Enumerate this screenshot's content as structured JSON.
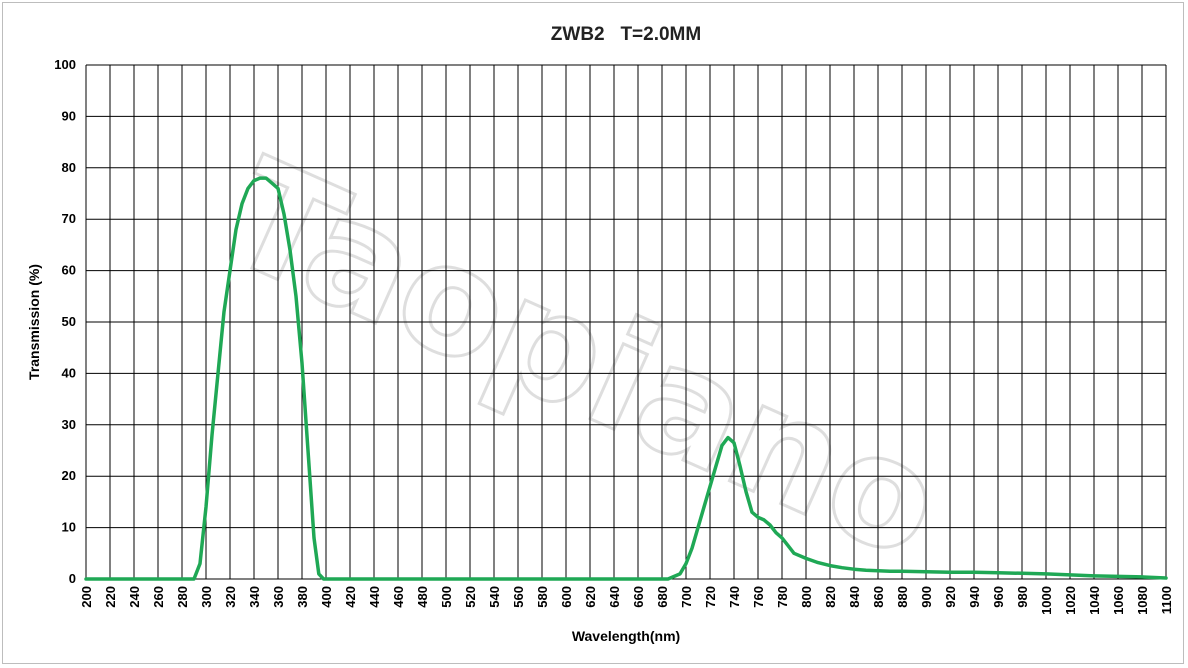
{
  "watermark": "Taopiano",
  "chart_data": {
    "type": "line",
    "title": "ZWB2   T=2.0MM",
    "xlabel": "Wavelength(nm)",
    "ylabel": "Transmission (%)",
    "xlim": [
      200,
      1100
    ],
    "ylim": [
      0,
      100
    ],
    "xticks": [
      "200",
      "220",
      "240",
      "260",
      "280",
      "300",
      "320",
      "340",
      "360",
      "380",
      "400",
      "420",
      "440",
      "460",
      "480",
      "500",
      "520",
      "540",
      "560",
      "580",
      "600",
      "620",
      "640",
      "660",
      "680",
      "700",
      "720",
      "740",
      "760",
      "780",
      "800",
      "820",
      "840",
      "860",
      "880",
      "900",
      "920",
      "940",
      "960",
      "980",
      "1000",
      "1020",
      "1040",
      "1060",
      "1080",
      "1100"
    ],
    "yticks": [
      "0",
      "10",
      "20",
      "30",
      "40",
      "50",
      "60",
      "70",
      "80",
      "90",
      "100"
    ],
    "grid": true,
    "legend": "none",
    "series": [
      {
        "color": "#1fa855",
        "points": [
          [
            200,
            0
          ],
          [
            290,
            0
          ],
          [
            295,
            3
          ],
          [
            300,
            14
          ],
          [
            305,
            28
          ],
          [
            310,
            40
          ],
          [
            315,
            52
          ],
          [
            320,
            60
          ],
          [
            325,
            68
          ],
          [
            330,
            73
          ],
          [
            335,
            76
          ],
          [
            340,
            77.5
          ],
          [
            345,
            78
          ],
          [
            350,
            78
          ],
          [
            355,
            77
          ],
          [
            360,
            76
          ],
          [
            365,
            71
          ],
          [
            370,
            64
          ],
          [
            375,
            55
          ],
          [
            380,
            42
          ],
          [
            385,
            25
          ],
          [
            390,
            8
          ],
          [
            394,
            1
          ],
          [
            398,
            0
          ],
          [
            685,
            0
          ],
          [
            695,
            1
          ],
          [
            700,
            3
          ],
          [
            705,
            6
          ],
          [
            710,
            10
          ],
          [
            715,
            14
          ],
          [
            720,
            18
          ],
          [
            725,
            22
          ],
          [
            730,
            26
          ],
          [
            735,
            27.5
          ],
          [
            740,
            26.5
          ],
          [
            745,
            22
          ],
          [
            750,
            17
          ],
          [
            755,
            13
          ],
          [
            760,
            12
          ],
          [
            765,
            11.5
          ],
          [
            770,
            10.5
          ],
          [
            775,
            9
          ],
          [
            780,
            8
          ],
          [
            785,
            6.5
          ],
          [
            790,
            5
          ],
          [
            800,
            4
          ],
          [
            810,
            3.2
          ],
          [
            820,
            2.6
          ],
          [
            830,
            2.2
          ],
          [
            840,
            1.9
          ],
          [
            850,
            1.7
          ],
          [
            860,
            1.6
          ],
          [
            870,
            1.5
          ],
          [
            880,
            1.5
          ],
          [
            900,
            1.4
          ],
          [
            920,
            1.3
          ],
          [
            940,
            1.3
          ],
          [
            960,
            1.2
          ],
          [
            980,
            1.1
          ],
          [
            1000,
            1.0
          ],
          [
            1020,
            0.8
          ],
          [
            1040,
            0.6
          ],
          [
            1060,
            0.5
          ],
          [
            1080,
            0.4
          ],
          [
            1100,
            0.2
          ]
        ]
      }
    ]
  }
}
